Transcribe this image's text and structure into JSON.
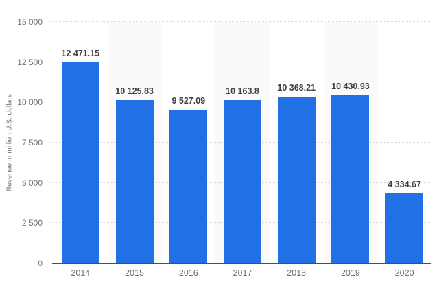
{
  "chart_data": {
    "type": "bar",
    "title": "",
    "xlabel": "",
    "ylabel": "Revenue in million U.S. dollars",
    "categories": [
      "2014",
      "2015",
      "2016",
      "2017",
      "2018",
      "2019",
      "2020"
    ],
    "values": [
      12471.15,
      10125.83,
      9527.09,
      10163.8,
      10368.21,
      10430.93,
      4334.67
    ],
    "value_labels": [
      "12 471.15",
      "10 125.83",
      "9 527.09",
      "10 163.8",
      "10 368.21",
      "10 430.93",
      "4 334.67"
    ],
    "ylim": [
      0,
      15000
    ],
    "ytick_values": [
      0,
      2500,
      5000,
      7500,
      10000,
      12500,
      15000
    ],
    "ytick_labels": [
      "0",
      "2 500",
      "5 000",
      "7 500",
      "10 000",
      "12 500",
      "15 000"
    ],
    "grid": true,
    "legend": "none",
    "bar_color": "#2171e5",
    "stripe_color": "#fafafa",
    "striped_columns": [
      1,
      3,
      5
    ]
  }
}
